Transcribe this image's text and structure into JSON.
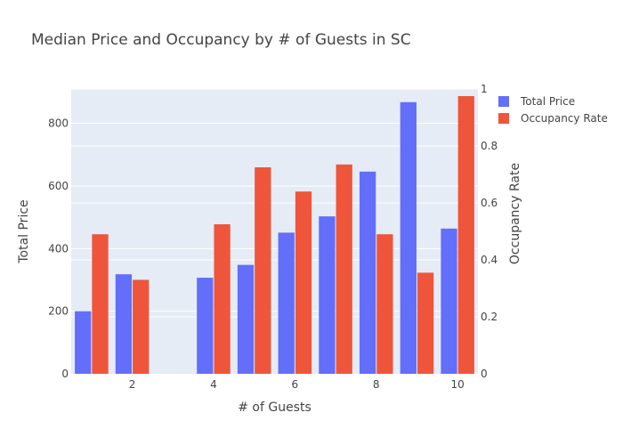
{
  "chart_data": {
    "type": "bar",
    "title": "Median Price and Occupancy by # of Guests in SC",
    "xlabel": "# of Guests",
    "ylabel": "Total Price",
    "y2label": "Occupancy Rate",
    "x": [
      1,
      2,
      3,
      4,
      5,
      6,
      7,
      8,
      9,
      10
    ],
    "x_ticks": [
      2,
      4,
      6,
      8,
      10
    ],
    "ylim": [
      0,
      910
    ],
    "y_ticks": [
      0,
      200,
      400,
      600,
      800
    ],
    "y2lim": [
      0,
      1.0
    ],
    "y2_ticks": [
      0,
      0.2,
      0.4,
      0.6,
      0.8,
      1
    ],
    "grid": true,
    "legend_position": "top-right",
    "series": [
      {
        "name": "Total Price",
        "axis": "y",
        "color": "#636efa",
        "values": [
          200,
          318,
          null,
          307,
          348,
          451,
          503,
          646,
          868,
          464
        ]
      },
      {
        "name": "Occupancy Rate",
        "axis": "y2",
        "color": "#ef553b",
        "values": [
          0.49,
          0.33,
          null,
          0.525,
          0.725,
          0.64,
          0.735,
          0.49,
          0.355,
          0.975
        ]
      }
    ]
  }
}
